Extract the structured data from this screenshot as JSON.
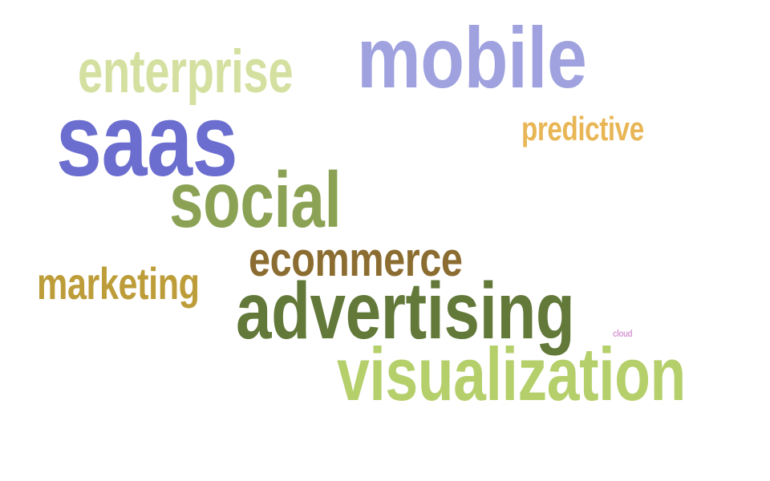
{
  "cloud": {
    "words": {
      "mobile": {
        "text": "mobile",
        "color": "#9fa2df"
      },
      "enterprise": {
        "text": "enterprise",
        "color": "#d4e0a0"
      },
      "saas": {
        "text": "saas",
        "color": "#6b6ecf"
      },
      "predictive": {
        "text": "predictive",
        "color": "#e8b655"
      },
      "social": {
        "text": "social",
        "color": "#8ba254"
      },
      "ecommerce": {
        "text": "ecommerce",
        "color": "#8c6d31"
      },
      "marketing": {
        "text": "marketing",
        "color": "#bd9d39"
      },
      "advertising": {
        "text": "advertising",
        "color": "#637939"
      },
      "cloud": {
        "text": "cloud",
        "color": "#d89bd5"
      },
      "visualization": {
        "text": "visualization",
        "color": "#b5cf6b"
      }
    }
  }
}
